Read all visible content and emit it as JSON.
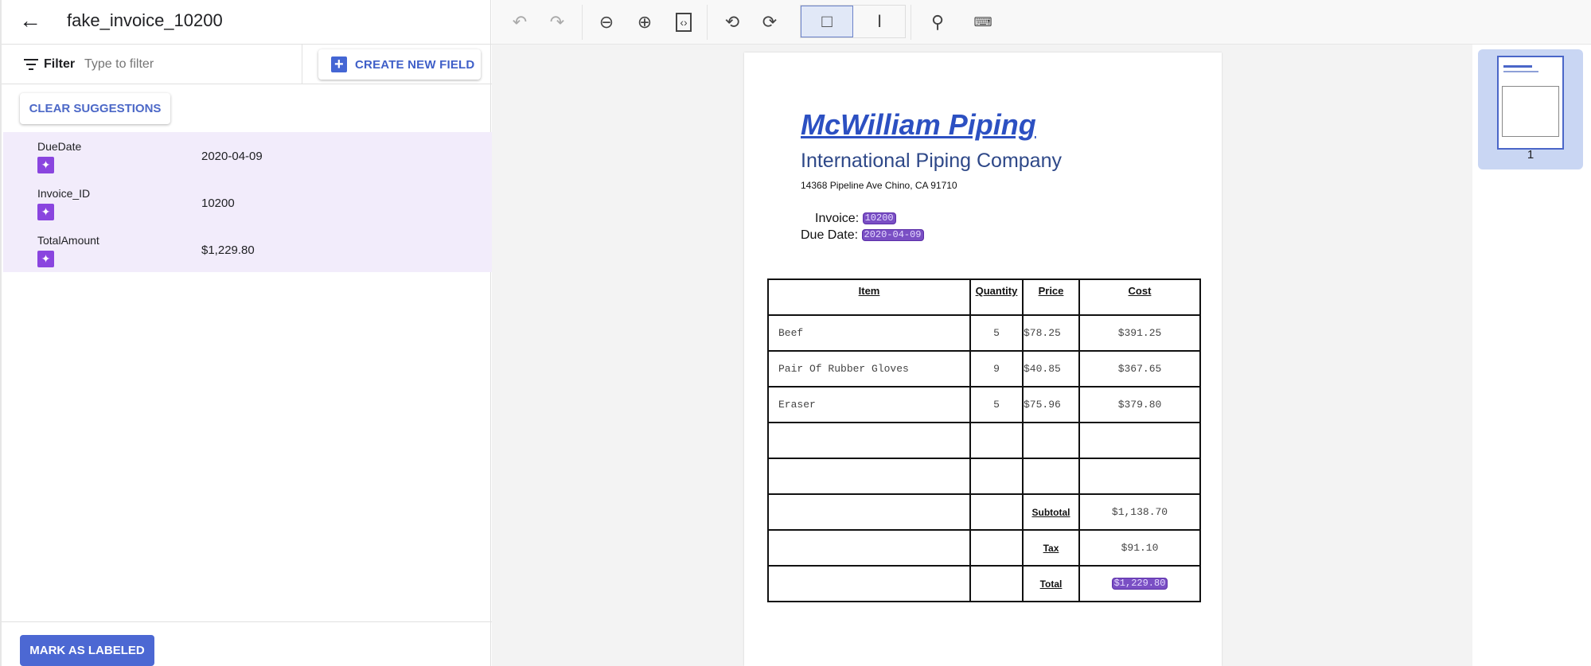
{
  "header": {
    "title": "fake_invoice_10200"
  },
  "filter": {
    "label": "Filter",
    "placeholder": "Type to filter"
  },
  "buttons": {
    "create_new_field": "CREATE NEW FIELD",
    "clear_suggestions": "CLEAR SUGGESTIONS",
    "mark_as_labeled": "MARK AS LABELED"
  },
  "fields": [
    {
      "label": "DueDate",
      "value": "2020-04-09",
      "icon": "sparkle-icon"
    },
    {
      "label": "Invoice_ID",
      "value": "10200",
      "icon": "sparkle-icon"
    },
    {
      "label": "TotalAmount",
      "value": "$1,229.80",
      "icon": "sparkle-icon"
    }
  ],
  "toolbar": {
    "icons": [
      "undo-icon",
      "redo-icon",
      "zoom-out-icon",
      "zoom-in-icon",
      "fit-icon",
      "rotate-left-icon",
      "rotate-right-icon",
      "bounding-box-icon",
      "text-select-icon",
      "search-icon",
      "keyboard-icon"
    ],
    "active_mode": "bounding-box"
  },
  "document": {
    "company": "McWilliam Piping",
    "subtitle": "International Piping Company",
    "address": "14368 Pipeline Ave Chino, CA 91710",
    "invoice_label": "Invoice:",
    "invoice_value": "10200",
    "due_label": "Due Date:",
    "due_value": "2020-04-09",
    "table": {
      "headers": [
        "Item",
        "Quantity",
        "Price",
        "Cost"
      ],
      "rows": [
        [
          "Beef",
          "5",
          "$78.25",
          "$391.25"
        ],
        [
          "Pair Of Rubber Gloves",
          "9",
          "$40.85",
          "$367.65"
        ],
        [
          "Eraser",
          "5",
          "$75.96",
          "$379.80"
        ]
      ],
      "subtotal_label": "Subtotal",
      "subtotal": "$1,138.70",
      "tax_label": "Tax",
      "tax": "$91.10",
      "total_label": "Total",
      "total": "$1,229.80"
    }
  },
  "thumbnails": [
    {
      "page": "1",
      "selected": true
    }
  ],
  "colors": {
    "accent": "#4c68d3",
    "suggestion_bg": "#f2ecfb",
    "suggestion_icon": "#8a45df",
    "highlight": "#7a4fc4"
  }
}
